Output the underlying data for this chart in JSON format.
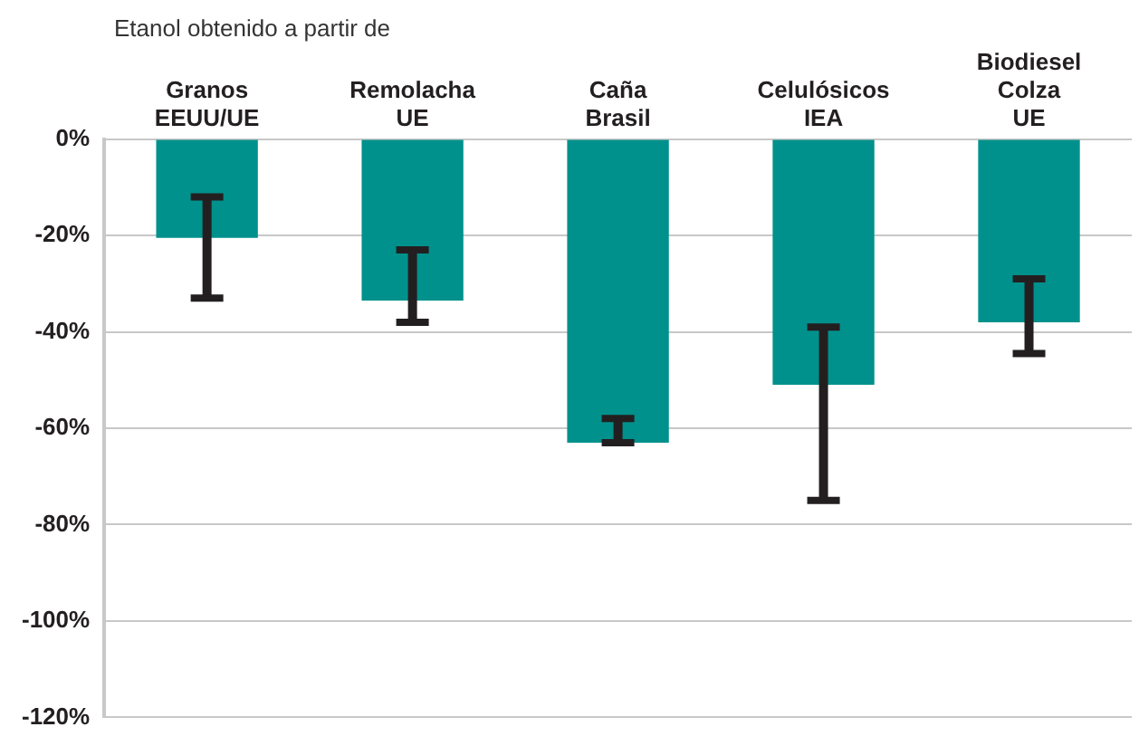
{
  "chart_data": {
    "type": "bar",
    "subtitle": "Etanol obtenido a partir de",
    "categories": [
      "Granos\nEEUU/UE",
      "Remolacha\nUE",
      "Caña\nBrasil",
      "Celulósicos\nIEA",
      "Biodiesel\nColza\nUE"
    ],
    "values": [
      -20.5,
      -33.5,
      -63,
      -51,
      -38
    ],
    "errors": [
      [
        -33,
        -12
      ],
      [
        -38,
        -23
      ],
      [
        -63,
        -58
      ],
      [
        -75,
        -39
      ],
      [
        -44.5,
        -29
      ]
    ],
    "color": "#00918c",
    "ylim": [
      -120,
      0
    ],
    "yticks": [
      {
        "value": -120,
        "label": "-120%"
      },
      {
        "value": -100,
        "label": "-100%"
      },
      {
        "value": -80,
        "label": "-80%"
      },
      {
        "value": -60,
        "label": "-60%"
      },
      {
        "value": -40,
        "label": "-40%"
      },
      {
        "value": -20,
        "label": "-20%"
      },
      {
        "value": 0,
        "label": "0%"
      }
    ],
    "grid": "y",
    "legend": false
  }
}
